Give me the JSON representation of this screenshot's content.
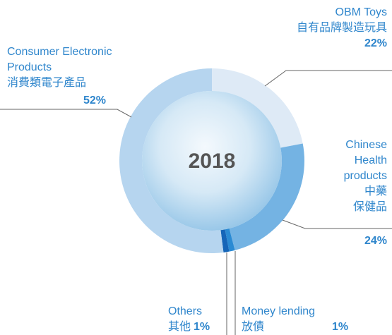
{
  "chart_data": {
    "type": "donut",
    "title": "2018",
    "categories": [
      [
        "OBM Toys",
        "自有品牌製造玩具"
      ],
      [
        "Chinese",
        "Health",
        "products",
        "中藥",
        "保健品"
      ],
      [
        "Money lending",
        "放債"
      ],
      [
        "Others",
        "其他"
      ],
      [
        "Consumer Electronic",
        "Products",
        "消費類電子產品"
      ]
    ],
    "values": [
      22,
      24,
      1,
      1,
      52
    ],
    "value_labels": [
      "22%",
      "24%",
      "1%",
      "1%",
      "52%"
    ],
    "colors": [
      "#deeaf6",
      "#74b3e3",
      "#2a8ad3",
      "#1565b8",
      "#b6d5ef"
    ]
  }
}
